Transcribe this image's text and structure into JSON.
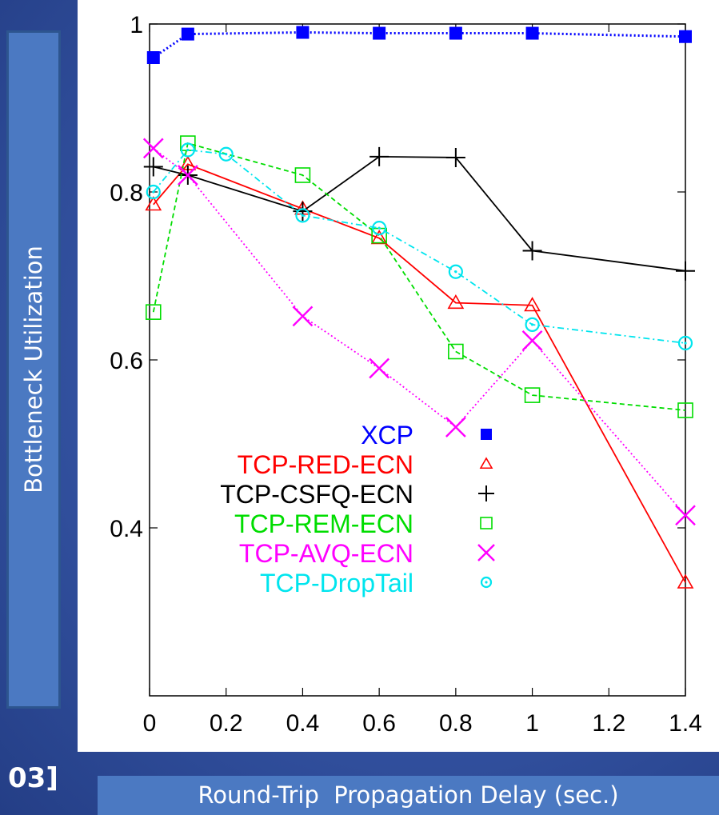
{
  "slide": {
    "y_axis_title": "Bottleneck Utilization",
    "x_axis_title": "Round-Trip  Propagation Delay (sec.)",
    "corner_text": "03]"
  },
  "chart_data": {
    "type": "line",
    "title": "",
    "xlabel": "Round-Trip  Propagation Delay (sec.)",
    "ylabel": "Bottleneck Utilization",
    "xlim": [
      0,
      1.4
    ],
    "ylim": [
      0.2,
      1.0
    ],
    "xticks": [
      0,
      0.2,
      0.4,
      0.6,
      0.8,
      1,
      1.2,
      1.4
    ],
    "xtick_labels": [
      "0",
      "0.2",
      "0.4",
      "0.6",
      "0.8",
      "1",
      "1.2",
      "1.4"
    ],
    "yticks": [
      0.4,
      0.6,
      0.8,
      1.0
    ],
    "ytick_labels": [
      "0.4",
      "0.6",
      "0.8",
      "1"
    ],
    "grid": false,
    "legend_position": "bottom-center",
    "series": [
      {
        "name": "XCP",
        "color": "#0000ff",
        "marker": "filled-square",
        "dash": "dotted",
        "x": [
          0.01,
          0.1,
          0.4,
          0.6,
          0.8,
          1.0,
          1.4
        ],
        "y": [
          0.96,
          0.988,
          0.99,
          0.989,
          0.989,
          0.989,
          0.985
        ]
      },
      {
        "name": "TCP-RED-ECN",
        "color": "#ff0000",
        "marker": "triangle",
        "dash": "solid",
        "x": [
          0.01,
          0.1,
          0.4,
          0.6,
          0.8,
          1.0,
          1.4
        ],
        "y": [
          0.785,
          0.833,
          0.78,
          0.745,
          0.668,
          0.665,
          0.335
        ]
      },
      {
        "name": "TCP-CSFQ-ECN",
        "color": "#000000",
        "marker": "plus",
        "dash": "solid",
        "x": [
          0.01,
          0.1,
          0.4,
          0.6,
          0.8,
          1.0,
          1.4
        ],
        "y": [
          0.83,
          0.82,
          0.777,
          0.842,
          0.841,
          0.73,
          0.706
        ]
      },
      {
        "name": "TCP-REM-ECN",
        "color": "#00dd00",
        "marker": "open-square",
        "dash": "dashed",
        "x": [
          0.01,
          0.1,
          0.4,
          0.6,
          0.8,
          1.0,
          1.4
        ],
        "y": [
          0.657,
          0.858,
          0.82,
          0.748,
          0.61,
          0.558,
          0.54
        ]
      },
      {
        "name": "TCP-AVQ-ECN",
        "color": "#ff00ff",
        "marker": "cross",
        "dash": "dotted",
        "x": [
          0.01,
          0.1,
          0.4,
          0.6,
          0.8,
          1.0,
          1.4
        ],
        "y": [
          0.852,
          0.82,
          0.652,
          0.59,
          0.52,
          0.623,
          0.415
        ]
      },
      {
        "name": "TCP-DropTail",
        "color": "#00e5ee",
        "marker": "circle-dot",
        "dash": "dashdot",
        "x": [
          0.01,
          0.1,
          0.2,
          0.4,
          0.6,
          0.8,
          1.0,
          1.4
        ],
        "y": [
          0.8,
          0.85,
          0.845,
          0.772,
          0.757,
          0.705,
          0.642,
          0.62
        ]
      }
    ]
  }
}
